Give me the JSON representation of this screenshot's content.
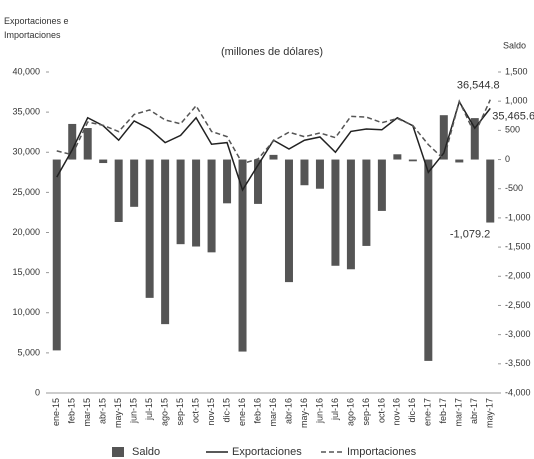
{
  "chart_data": {
    "type": "bar-line",
    "ylabel": "Exportaciones e Importaciones",
    "subtitle": "(millones de dólares)",
    "y2label": "Saldo",
    "categories": [
      "ene-15",
      "feb-15",
      "mar-15",
      "abr-15",
      "may-15",
      "jun-15",
      "jul-15",
      "ago-15",
      "sep-15",
      "oct-15",
      "nov-15",
      "dic-15",
      "ene-16",
      "feb-16",
      "mar-16",
      "abr-16",
      "may-16",
      "jun-16",
      "jul-16",
      "ago-16",
      "sep-16",
      "oct-16",
      "nov-16",
      "dic-16",
      "ene-17",
      "feb-17",
      "mar-17",
      "abr-17",
      "may-17"
    ],
    "series": [
      {
        "name": "Saldo",
        "type": "bar",
        "axis": "y2",
        "color": "#555555",
        "values": [
          -3270,
          610,
          540,
          -60,
          -1070,
          -810,
          -2370,
          -2820,
          -1450,
          -1490,
          -1590,
          -750,
          -3290,
          -760,
          80,
          -2100,
          -440,
          -500,
          -1820,
          -1880,
          -1480,
          -880,
          90,
          -30,
          -3450,
          760,
          -50,
          710,
          -1079.2
        ],
        "value_labels": [
          null,
          null,
          null,
          null,
          null,
          null,
          null,
          null,
          null,
          null,
          null,
          null,
          null,
          null,
          null,
          null,
          null,
          null,
          null,
          null,
          null,
          null,
          null,
          null,
          null,
          null,
          null,
          null,
          "-1,079.2"
        ]
      },
      {
        "name": "Exportaciones",
        "type": "line",
        "color": "#222222",
        "values": [
          26900,
          30300,
          34300,
          33300,
          31500,
          33900,
          32900,
          31200,
          32100,
          34300,
          31000,
          31200,
          25300,
          28400,
          31500,
          30400,
          31500,
          31900,
          30000,
          32600,
          32900,
          32800,
          34300,
          33300,
          27500,
          29900,
          36300,
          33000,
          35465.6
        ],
        "value_labels": [
          null,
          null,
          null,
          null,
          null,
          null,
          null,
          null,
          null,
          null,
          null,
          null,
          null,
          null,
          null,
          null,
          null,
          null,
          null,
          null,
          null,
          null,
          null,
          null,
          null,
          null,
          null,
          null,
          "35,465.6"
        ]
      },
      {
        "name": "Importaciones",
        "type": "line",
        "dash": true,
        "color": "#555555",
        "values": [
          30170,
          29690,
          33760,
          33360,
          32570,
          34710,
          35270,
          34020,
          33550,
          35790,
          32590,
          31950,
          28590,
          29160,
          31420,
          32500,
          31940,
          32400,
          31820,
          34480,
          34380,
          33680,
          34210,
          33330,
          30950,
          29140,
          36350,
          32290,
          36544.8
        ],
        "value_labels": [
          null,
          null,
          null,
          null,
          null,
          null,
          null,
          null,
          null,
          null,
          null,
          null,
          null,
          null,
          null,
          null,
          null,
          null,
          null,
          null,
          null,
          null,
          null,
          null,
          null,
          null,
          null,
          null,
          "36,544.8"
        ]
      }
    ],
    "ylim": [
      0,
      40000
    ],
    "yticks": [
      0,
      {
        "value": 5000,
        "label": "5,000"
      },
      {
        "value": 10000,
        "label": "10,000"
      },
      {
        "value": 15000,
        "label": "15,000"
      },
      {
        "value": 20000,
        "label": "20,000"
      },
      {
        "value": 25000,
        "label": "25,000"
      },
      {
        "value": 30000,
        "label": "30,000"
      },
      {
        "value": 35000,
        "label": "35,000"
      },
      {
        "value": 40000,
        "label": "40,000"
      }
    ],
    "y2lim": [
      -4000,
      1500
    ],
    "y2ticks": [
      {
        "value": -4000,
        "label": "-4,000"
      },
      {
        "value": -3500,
        "label": "-3,500"
      },
      {
        "value": -3000,
        "label": "-3,000"
      },
      {
        "value": -2500,
        "label": "-2,500"
      },
      {
        "value": -2000,
        "label": "-2,000"
      },
      {
        "value": -1500,
        "label": "-1,500"
      },
      {
        "value": -1000,
        "label": "-1,000"
      },
      -500,
      0,
      500,
      {
        "value": 1000,
        "label": "1,000"
      },
      {
        "value": 1500,
        "label": "1,500"
      }
    ],
    "legend": "bottom"
  }
}
